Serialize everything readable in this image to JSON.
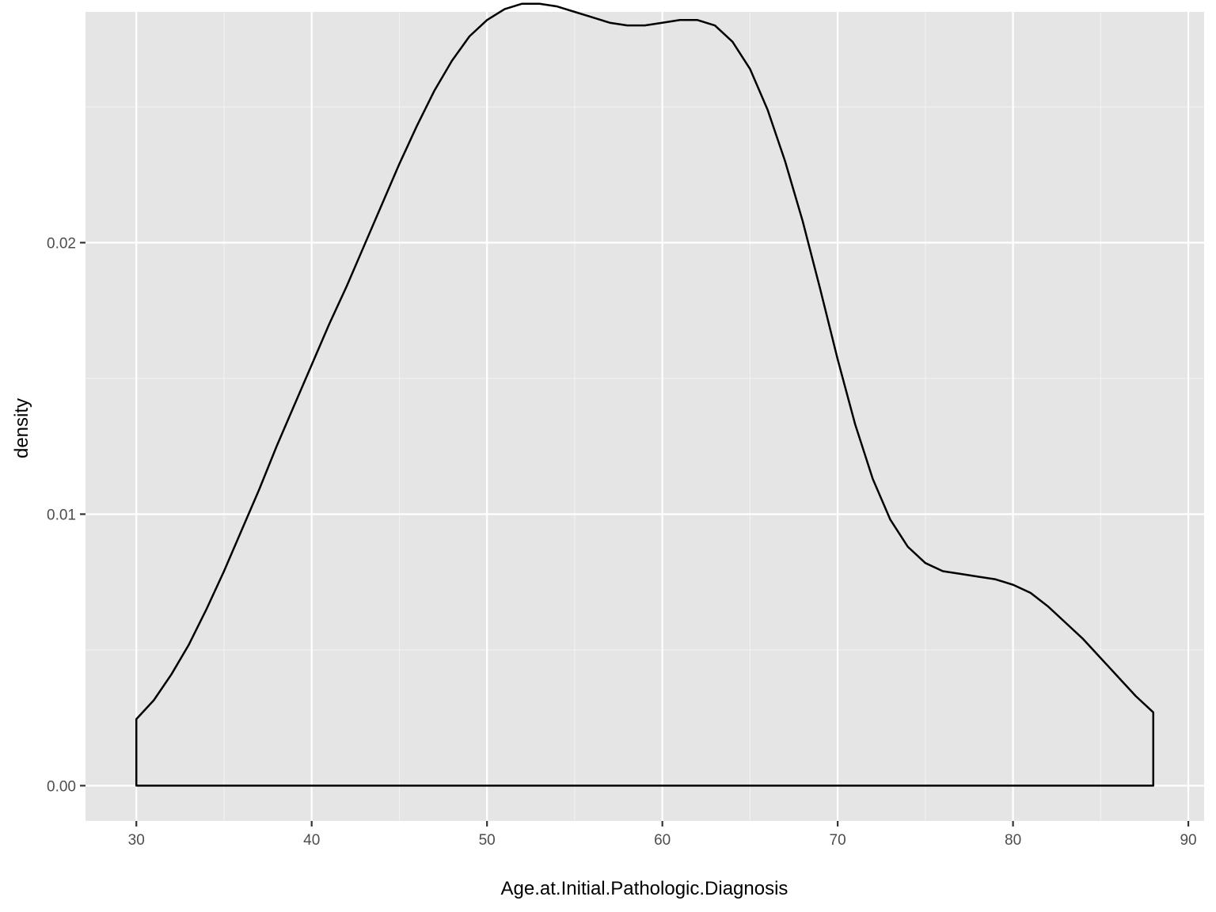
{
  "chart_data": {
    "type": "area",
    "title": "",
    "xlabel": "Age.at.Initial.Pathologic.Diagnosis",
    "ylabel": "density",
    "xlim": [
      27.1,
      90.9
    ],
    "ylim": [
      -0.0013,
      0.0285
    ],
    "x_ticks": [
      30,
      40,
      50,
      60,
      70,
      80,
      90
    ],
    "x_tick_labels": [
      "30",
      "40",
      "50",
      "60",
      "70",
      "80",
      "90"
    ],
    "x_minor_ticks": [
      35,
      45,
      55,
      65,
      75,
      85
    ],
    "y_ticks": [
      0,
      0.01,
      0.02
    ],
    "y_tick_labels": [
      "0.00",
      "0.01",
      "0.02"
    ],
    "y_minor_ticks": [
      0.005,
      0.015,
      0.025
    ],
    "grid": true,
    "legend": "none",
    "colors": {
      "panel": "#e5e5e5",
      "line": "#000000",
      "fill": "none"
    },
    "series": [
      {
        "x": [
          30,
          31,
          32,
          33,
          34,
          35,
          36,
          37,
          38,
          39,
          40,
          41,
          42,
          43,
          44,
          45,
          46,
          47,
          48,
          49,
          50,
          51,
          52,
          53,
          54,
          55,
          56,
          57,
          58,
          59,
          60,
          61,
          62,
          63,
          64,
          65,
          66,
          67,
          68,
          69,
          70,
          71,
          72,
          73,
          74,
          75,
          76,
          77,
          78,
          79,
          80,
          81,
          82,
          83,
          84,
          85,
          86,
          87,
          88
        ],
        "y": [
          0.00245,
          0.00315,
          0.0041,
          0.0052,
          0.0065,
          0.0079,
          0.0094,
          0.0109,
          0.0125,
          0.014,
          0.0155,
          0.017,
          0.0184,
          0.0199,
          0.0214,
          0.0229,
          0.0243,
          0.0256,
          0.0267,
          0.0276,
          0.0282,
          0.0286,
          0.0288,
          0.0288,
          0.0287,
          0.0285,
          0.0283,
          0.0281,
          0.028,
          0.028,
          0.0281,
          0.0282,
          0.0282,
          0.028,
          0.0274,
          0.0264,
          0.0249,
          0.023,
          0.0208,
          0.0183,
          0.0157,
          0.0133,
          0.0113,
          0.0098,
          0.0088,
          0.0082,
          0.0079,
          0.0078,
          0.0077,
          0.0076,
          0.0074,
          0.0071,
          0.0066,
          0.006,
          0.0054,
          0.0047,
          0.004,
          0.0033,
          0.0027
        ]
      }
    ]
  }
}
